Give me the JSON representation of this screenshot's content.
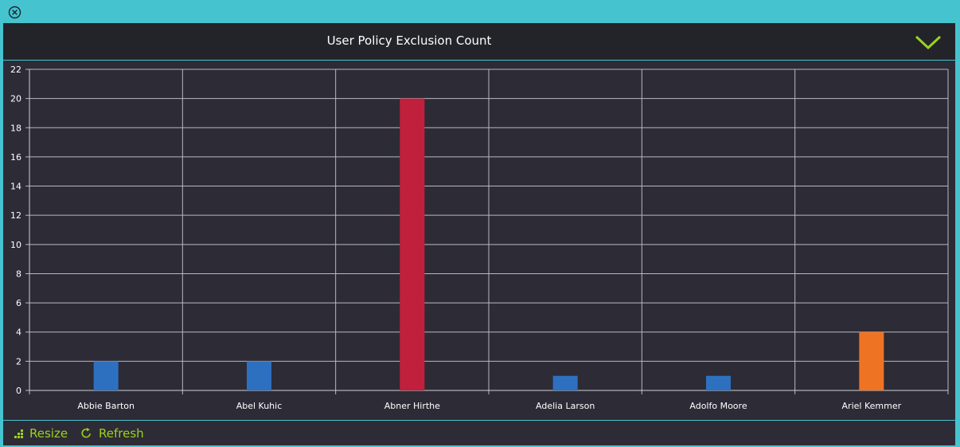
{
  "window": {
    "close_icon": "close-circle-icon"
  },
  "header": {
    "title": "User Policy Exclusion Count",
    "collapse_icon": "chevron-down-icon"
  },
  "footer": {
    "resize_label": "Resize",
    "resize_icon": "resize-dots-icon",
    "refresh_label": "Refresh",
    "refresh_icon": "refresh-icon"
  },
  "colors": {
    "accent": "#45c4cf",
    "action": "#9ad41c",
    "panel_bg": "#2d2b36",
    "header_bg": "#23232a"
  },
  "chart_data": {
    "type": "bar",
    "title": "",
    "xlabel": "",
    "ylabel": "",
    "ylim": [
      0,
      22
    ],
    "yticks": [
      0,
      2,
      4,
      6,
      8,
      10,
      12,
      14,
      16,
      18,
      20,
      22
    ],
    "grid": true,
    "categories": [
      "Abbie Barton",
      "Abel Kuhic",
      "Abner Hirthe",
      "Adelia Larson",
      "Adolfo Moore",
      "Ariel Kemmer"
    ],
    "values": [
      2,
      2,
      20,
      1,
      1,
      4
    ],
    "bar_colors": [
      "#2e70c0",
      "#2e70c0",
      "#c0203c",
      "#2e70c0",
      "#2e70c0",
      "#ee7424"
    ]
  }
}
